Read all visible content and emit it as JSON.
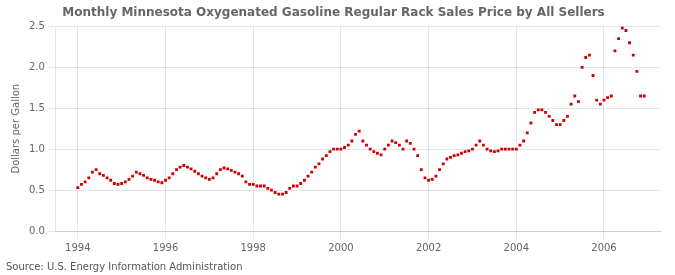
{
  "chart_data": {
    "type": "scatter",
    "title": "Monthly Minnesota Oxygenated Gasoline Regular Rack Sales Price by All Sellers",
    "ylabel": "Dollars per Gallon",
    "annotation": "Source: U.S. Energy Information Administration",
    "color": "#cc0000",
    "marker": "square",
    "grid": true,
    "xlim": [
      1993.5,
      2007.3
    ],
    "xticks": [
      1994,
      1996,
      1998,
      2000,
      2002,
      2004,
      2006
    ],
    "ylim": [
      0.0,
      2.5
    ],
    "yticks": [
      {
        "value": 0.0,
        "label": "0.0"
      },
      0.5,
      {
        "value": 1.0,
        "label": "1.0"
      },
      1.5,
      {
        "value": 2.0,
        "label": "2.0"
      },
      2.5
    ],
    "x": [
      1994.0,
      1994.083,
      1994.167,
      1994.25,
      1994.333,
      1994.417,
      1994.5,
      1994.583,
      1994.667,
      1994.75,
      1994.833,
      1994.917,
      1995.0,
      1995.083,
      1995.167,
      1995.25,
      1995.333,
      1995.417,
      1995.5,
      1995.583,
      1995.667,
      1995.75,
      1995.833,
      1995.917,
      1996.0,
      1996.083,
      1996.167,
      1996.25,
      1996.333,
      1996.417,
      1996.5,
      1996.583,
      1996.667,
      1996.75,
      1996.833,
      1996.917,
      1997.0,
      1997.083,
      1997.167,
      1997.25,
      1997.333,
      1997.417,
      1997.5,
      1997.583,
      1997.667,
      1997.75,
      1997.833,
      1997.917,
      1998.0,
      1998.083,
      1998.167,
      1998.25,
      1998.333,
      1998.417,
      1998.5,
      1998.583,
      1998.667,
      1998.75,
      1998.833,
      1998.917,
      1999.0,
      1999.083,
      1999.167,
      1999.25,
      1999.333,
      1999.417,
      1999.5,
      1999.583,
      1999.667,
      1999.75,
      1999.833,
      1999.917,
      2000.0,
      2000.083,
      2000.167,
      2000.25,
      2000.333,
      2000.417,
      2000.5,
      2000.583,
      2000.667,
      2000.75,
      2000.833,
      2000.917,
      2001.0,
      2001.083,
      2001.167,
      2001.25,
      2001.333,
      2001.417,
      2001.5,
      2001.583,
      2001.667,
      2001.75,
      2001.833,
      2001.917,
      2002.0,
      2002.083,
      2002.167,
      2002.25,
      2002.333,
      2002.417,
      2002.5,
      2002.583,
      2002.667,
      2002.75,
      2002.833,
      2002.917,
      2003.0,
      2003.083,
      2003.167,
      2003.25,
      2003.333,
      2003.417,
      2003.5,
      2003.583,
      2003.667,
      2003.75,
      2003.833,
      2003.917,
      2004.0,
      2004.083,
      2004.167,
      2004.25,
      2004.333,
      2004.417,
      2004.5,
      2004.583,
      2004.667,
      2004.75,
      2004.833,
      2004.917,
      2005.0,
      2005.083,
      2005.167,
      2005.25,
      2005.333,
      2005.417,
      2005.5,
      2005.583,
      2005.667,
      2005.75,
      2005.833,
      2005.917,
      2006.0,
      2006.083,
      2006.167,
      2006.25,
      2006.333,
      2006.417,
      2006.5,
      2006.583,
      2006.667,
      2006.75,
      2006.833,
      2006.917
    ],
    "values": [
      0.53,
      0.57,
      0.6,
      0.65,
      0.72,
      0.75,
      0.7,
      0.68,
      0.65,
      0.62,
      0.58,
      0.57,
      0.58,
      0.6,
      0.63,
      0.67,
      0.72,
      0.7,
      0.68,
      0.65,
      0.63,
      0.62,
      0.6,
      0.59,
      0.62,
      0.65,
      0.7,
      0.75,
      0.78,
      0.8,
      0.78,
      0.76,
      0.73,
      0.7,
      0.67,
      0.65,
      0.63,
      0.65,
      0.7,
      0.75,
      0.77,
      0.76,
      0.74,
      0.72,
      0.7,
      0.67,
      0.6,
      0.57,
      0.57,
      0.55,
      0.55,
      0.55,
      0.52,
      0.5,
      0.47,
      0.45,
      0.45,
      0.47,
      0.52,
      0.55,
      0.55,
      0.58,
      0.62,
      0.67,
      0.72,
      0.78,
      0.82,
      0.88,
      0.92,
      0.97,
      1.0,
      1.0,
      1.0,
      1.02,
      1.05,
      1.1,
      1.18,
      1.22,
      1.1,
      1.05,
      1.0,
      0.97,
      0.95,
      0.93,
      1.0,
      1.05,
      1.1,
      1.08,
      1.05,
      1.0,
      1.1,
      1.07,
      1.0,
      0.92,
      0.75,
      0.65,
      0.62,
      0.63,
      0.67,
      0.75,
      0.82,
      0.88,
      0.9,
      0.92,
      0.93,
      0.95,
      0.97,
      0.98,
      1.0,
      1.05,
      1.1,
      1.05,
      1.0,
      0.98,
      0.97,
      0.98,
      1.0,
      1.0,
      1.0,
      1.0,
      1.0,
      1.05,
      1.1,
      1.2,
      1.32,
      1.45,
      1.48,
      1.48,
      1.45,
      1.4,
      1.35,
      1.3,
      1.3,
      1.35,
      1.4,
      1.55,
      1.65,
      1.58,
      2.0,
      2.12,
      2.15,
      1.9,
      1.6,
      1.55,
      1.6,
      1.63,
      1.65,
      2.2,
      2.35,
      2.48,
      2.45,
      2.3,
      2.15,
      1.95,
      1.65,
      1.65
    ]
  }
}
